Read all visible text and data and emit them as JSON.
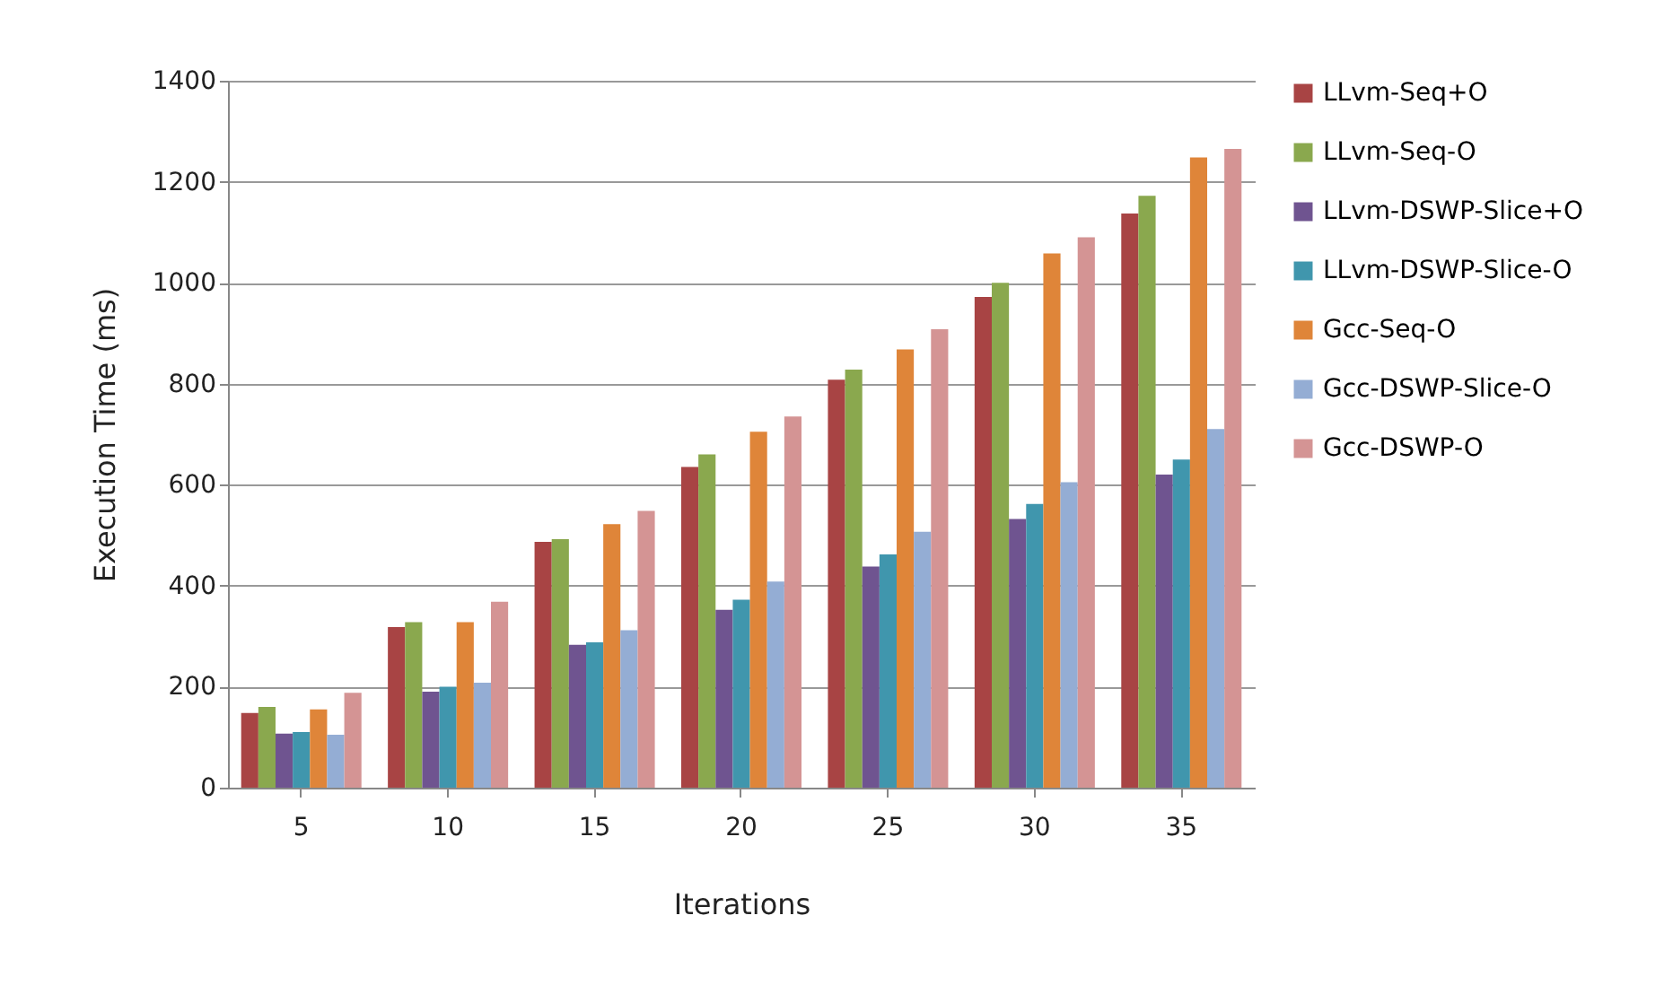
{
  "chart_data": {
    "type": "bar",
    "xlabel": "Iterations",
    "ylabel": "Execution Time (ms)",
    "categories": [
      "5",
      "10",
      "15",
      "20",
      "25",
      "30",
      "35"
    ],
    "series": [
      {
        "name": "LLvm-Seq+O",
        "color": "#a84444",
        "values": [
          148,
          318,
          487,
          635,
          808,
          972,
          1137
        ]
      },
      {
        "name": "LLvm-Seq-O",
        "color": "#8aa84e",
        "values": [
          160,
          328,
          492,
          660,
          828,
          1000,
          1172
        ]
      },
      {
        "name": "LLvm-DSWP-Slice+O",
        "color": "#6f5490",
        "values": [
          107,
          190,
          283,
          352,
          438,
          532,
          620
        ]
      },
      {
        "name": "LLvm-DSWP-Slice-O",
        "color": "#4096ad",
        "values": [
          110,
          200,
          288,
          372,
          462,
          562,
          650
        ]
      },
      {
        "name": "Gcc-Seq-O",
        "color": "#df8539",
        "values": [
          155,
          328,
          522,
          705,
          868,
          1058,
          1248
        ]
      },
      {
        "name": "Gcc-DSWP-Slice-O",
        "color": "#94add4",
        "values": [
          105,
          208,
          312,
          408,
          507,
          605,
          710
        ]
      },
      {
        "name": "Gcc-DSWP-O",
        "color": "#d49494",
        "values": [
          188,
          368,
          548,
          735,
          908,
          1090,
          1265
        ]
      }
    ],
    "ylim": [
      0,
      1400
    ],
    "yticks": [
      0,
      200,
      400,
      600,
      800,
      1000,
      1200,
      1400
    ],
    "grid": "y",
    "legend": "right"
  }
}
